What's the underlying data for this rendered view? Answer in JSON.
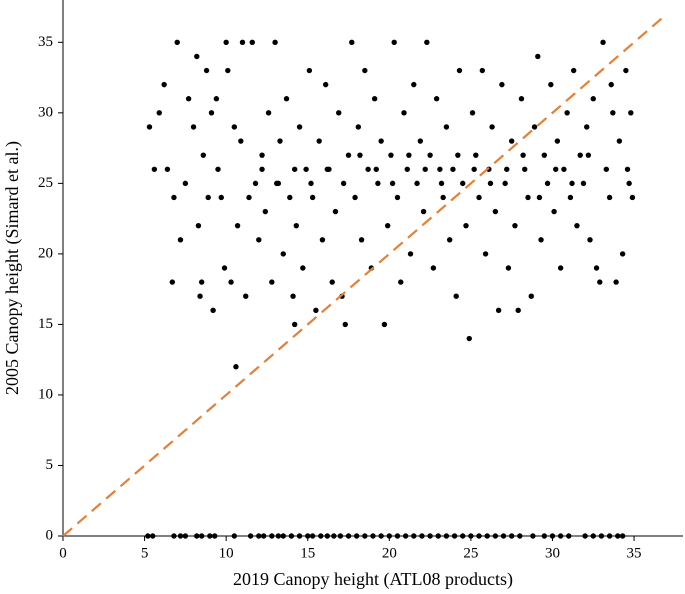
{
  "chart_data": {
    "type": "scatter",
    "x_label": "2019 Canopy height (ATL08 products)",
    "y_label": "2005 Canopy height (Simard et al.)",
    "x": [
      5.2,
      5.5,
      6.8,
      7.2,
      7.5,
      8.2,
      8.5,
      9,
      9.3,
      10.5,
      11.5,
      12,
      12.3,
      12.8,
      13.2,
      13.5,
      14,
      14.5,
      15,
      15.3,
      15.8,
      16.2,
      16.6,
      17,
      17.5,
      18,
      18.5,
      19,
      19.5,
      20,
      20.5,
      21,
      21.5,
      22,
      22.5,
      23,
      23.5,
      24,
      24.5,
      25,
      25.5,
      26,
      26.5,
      27,
      27.5,
      28,
      28.8,
      29.5,
      30,
      30.5,
      31,
      32,
      32.5,
      33,
      33.5,
      34,
      34.3,
      5.3,
      5.6,
      5.9,
      6.2,
      6.4,
      6.7,
      6.8,
      7,
      7.2,
      7.5,
      7.7,
      8,
      8.2,
      8.3,
      8.4,
      8.5,
      8.6,
      8.8,
      8.9,
      9.1,
      9.2,
      9.4,
      9.5,
      9.7,
      9.9,
      10,
      10.1,
      10.3,
      10.5,
      10.6,
      10.7,
      10.9,
      11,
      11.2,
      11.4,
      11.6,
      11.8,
      12,
      12.2,
      12.4,
      12.6,
      12.8,
      13,
      13.1,
      13.3,
      13.5,
      13.7,
      13.9,
      14.1,
      14.2,
      14.3,
      14.5,
      14.7,
      14.9,
      15.1,
      15.3,
      15.5,
      15.7,
      15.9,
      16.1,
      16.3,
      16.5,
      16.7,
      16.9,
      17.1,
      17.3,
      17.5,
      17.7,
      17.9,
      18.1,
      18.3,
      18.5,
      18.7,
      18.9,
      19.1,
      19.3,
      19.5,
      19.7,
      19.9,
      20.1,
      20.3,
      20.5,
      20.7,
      20.9,
      21.1,
      21.3,
      21.5,
      21.7,
      21.9,
      22.1,
      22.3,
      22.5,
      22.7,
      22.9,
      23.1,
      23.3,
      23.5,
      23.7,
      23.9,
      24.1,
      24.3,
      24.5,
      24.7,
      24.9,
      25.1,
      25.3,
      25.5,
      25.7,
      25.9,
      26.1,
      26.3,
      26.5,
      26.7,
      26.9,
      27.1,
      27.3,
      27.5,
      27.7,
      27.9,
      28.1,
      28.3,
      28.5,
      28.7,
      28.9,
      29.1,
      29.3,
      29.5,
      29.7,
      29.9,
      30.1,
      30.3,
      30.5,
      30.7,
      30.9,
      31.1,
      31.3,
      31.5,
      31.7,
      31.9,
      32.1,
      32.3,
      32.5,
      32.7,
      32.9,
      33.1,
      33.3,
      33.5,
      33.7,
      33.9,
      34.1,
      34.3,
      34.5,
      34.7,
      34.9,
      34.8,
      34.6,
      33.6,
      32.2,
      31.2,
      30.2,
      29.2,
      28.2,
      27.2,
      26.2,
      25.2,
      24.2,
      23.2,
      22.2,
      21.2,
      20.2,
      19.2,
      18.2,
      17.2,
      16.2,
      15.2,
      14.2,
      13.2,
      12.2
    ],
    "values": [
      0,
      0,
      0,
      0,
      0,
      0,
      0,
      0,
      0,
      0,
      0,
      0,
      0,
      0,
      0,
      0,
      0,
      0,
      0,
      0,
      0,
      0,
      0,
      0,
      0,
      0,
      0,
      0,
      0,
      0,
      0,
      0,
      0,
      0,
      0,
      0,
      0,
      0,
      0,
      0,
      0,
      0,
      0,
      0,
      0,
      0,
      0,
      0,
      0,
      0,
      0,
      0,
      0,
      0,
      0,
      0,
      0,
      29,
      26,
      30,
      32,
      26,
      18,
      24,
      35,
      21,
      25,
      31,
      29,
      34,
      22,
      17,
      18,
      27,
      33,
      24,
      30,
      16,
      31,
      26,
      24,
      19,
      35,
      33,
      18,
      29,
      12,
      22,
      28,
      35,
      17,
      24,
      35,
      25,
      21,
      27,
      23,
      30,
      18,
      35,
      25,
      28,
      20,
      31,
      24,
      17,
      15,
      22,
      29,
      19,
      26,
      33,
      24,
      16,
      28,
      21,
      32,
      26,
      18,
      23,
      30,
      17,
      15,
      27,
      35,
      24,
      29,
      21,
      33,
      26,
      19,
      31,
      25,
      28,
      15,
      22,
      27,
      35,
      24,
      18,
      30,
      26,
      20,
      32,
      25,
      28,
      23,
      35,
      27,
      19,
      31,
      26,
      24,
      29,
      21,
      26,
      17,
      33,
      25,
      22,
      14,
      30,
      27,
      24,
      33,
      20,
      26,
      29,
      23,
      16,
      32,
      25,
      19,
      28,
      22,
      16,
      31,
      26,
      24,
      17,
      29,
      34,
      21,
      27,
      25,
      32,
      23,
      28,
      19,
      26,
      30,
      24,
      33,
      22,
      27,
      25,
      29,
      21,
      31,
      19,
      18,
      35,
      26,
      24,
      30,
      18,
      28,
      20,
      33,
      25,
      24,
      30,
      26,
      32,
      27,
      25,
      26,
      24,
      27,
      26,
      25,
      26,
      27,
      25,
      26,
      27,
      25,
      26,
      27,
      25,
      26,
      25,
      26,
      25,
      26
    ],
    "color": "#000000",
    "reference_line": {
      "x": [
        0,
        37
      ],
      "values": [
        0,
        37
      ],
      "color": "#e58036"
    },
    "xlim": [
      0,
      38
    ],
    "ylim": [
      0,
      38
    ],
    "xticks": [
      0,
      5,
      10,
      15,
      20,
      25,
      30,
      35
    ],
    "yticks": [
      0,
      5,
      10,
      15,
      20,
      25,
      30,
      35
    ]
  }
}
